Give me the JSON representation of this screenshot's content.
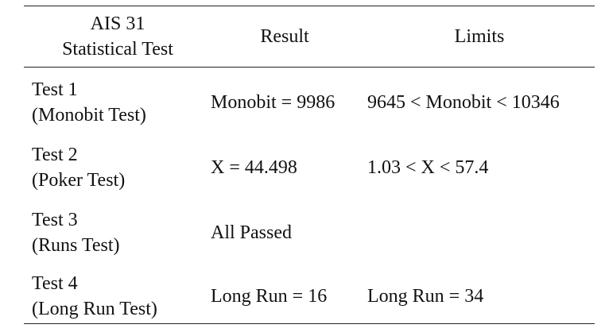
{
  "table": {
    "header": {
      "test": [
        "AIS 31",
        "Statistical Test"
      ],
      "result": "Result",
      "limits": "Limits"
    },
    "rows": [
      {
        "test": [
          "Test 1",
          "(Monobit Test)"
        ],
        "result": "Monobit = 9986",
        "limits": "9645 < Monobit  < 10346"
      },
      {
        "test": [
          "Test 2",
          "(Poker Test)"
        ],
        "result": "X = 44.498",
        "limits": "1.03 < X < 57.4"
      },
      {
        "test": [
          "Test 3",
          "(Runs Test)"
        ],
        "result": "All Passed"
      },
      {
        "test": [
          "Test 4",
          "(Long Run Test)"
        ],
        "result": "Long Run = 16",
        "limits": "Long Run = 34"
      }
    ]
  }
}
